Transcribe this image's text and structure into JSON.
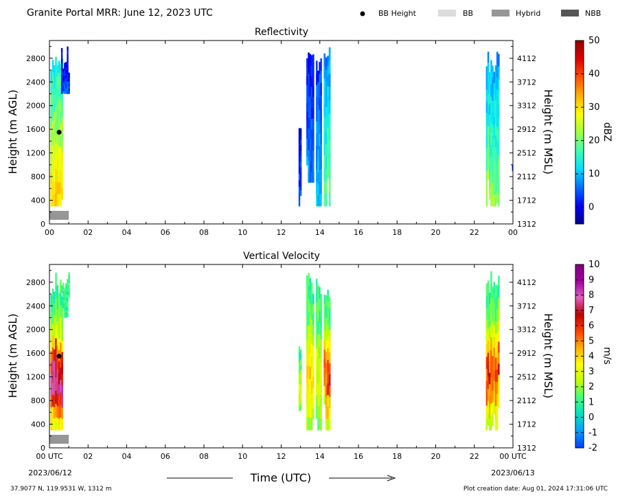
{
  "header": {
    "title": "Granite Portal MRR:  June 12, 2023 UTC",
    "legend": [
      {
        "label": "BB Height",
        "kind": "dot",
        "color": "#000000"
      },
      {
        "label": "BB",
        "kind": "box",
        "color": "#dcdcdc"
      },
      {
        "label": "Hybrid",
        "kind": "box",
        "color": "#969696"
      },
      {
        "label": "NBB",
        "kind": "box",
        "color": "#555555"
      }
    ]
  },
  "chart_data": [
    {
      "type": "heatmap",
      "title": "Reflectivity",
      "ylabel": "Height (m AGL)",
      "ylabel_right": "Height (m MSL)",
      "colorbar_label": "dBZ",
      "xlim": [
        0,
        24
      ],
      "ylim": [
        0,
        3100
      ],
      "yticks": [
        "0",
        "400",
        "800",
        "1200",
        "1600",
        "2000",
        "2400",
        "2800"
      ],
      "yticks_right": [
        "1312",
        "1712",
        "2112",
        "2512",
        "2912",
        "3312",
        "3712",
        "4112"
      ],
      "xticks": [
        "00",
        "02",
        "04",
        "06",
        "08",
        "10",
        "12",
        "14",
        "16",
        "18",
        "20",
        "22",
        "00"
      ],
      "colorbar_range": [
        -5,
        50
      ],
      "colorbar_ticks": [
        "0",
        "10",
        "20",
        "30",
        "40",
        "50"
      ],
      "colormap": [
        "#00008b",
        "#0000ff",
        "#0070ff",
        "#00e0ff",
        "#40ffb0",
        "#a0ff40",
        "#ffff00",
        "#ffb000",
        "#ff5000",
        "#e00000",
        "#900000"
      ],
      "bb_height": [
        {
          "x": 0.5,
          "y": 1550
        }
      ],
      "bb_type": [
        {
          "x0": 0.0,
          "x1": 1.0,
          "type": "Hybrid"
        }
      ],
      "echo_columns": [
        {
          "x0": 0.05,
          "x1": 0.7,
          "ybot": 300,
          "ytop": 3000,
          "peak": 32
        },
        {
          "x0": 0.6,
          "x1": 1.05,
          "ybot": 2200,
          "ytop": 3000,
          "peak": 5
        },
        {
          "x0": 12.9,
          "x1": 13.05,
          "ybot": 300,
          "ytop": 2000,
          "peak": 5
        },
        {
          "x0": 13.3,
          "x1": 13.7,
          "ybot": 700,
          "ytop": 3000,
          "peak": 8
        },
        {
          "x0": 13.8,
          "x1": 14.1,
          "ybot": 300,
          "ytop": 3000,
          "peak": 12
        },
        {
          "x0": 14.2,
          "x1": 14.55,
          "ybot": 300,
          "ytop": 3000,
          "peak": 20
        },
        {
          "x0": 22.6,
          "x1": 23.3,
          "ybot": 300,
          "ytop": 3000,
          "peak": 22
        },
        {
          "x0": 23.95,
          "x1": 24.0,
          "ybot": 600,
          "ytop": 1000,
          "peak": 5
        }
      ]
    },
    {
      "type": "heatmap",
      "title": "Vertical Velocity",
      "ylabel": "Height (m AGL)",
      "ylabel_right": "Height (m MSL)",
      "colorbar_label": "m/s",
      "xlim": [
        0,
        24
      ],
      "ylim": [
        0,
        3100
      ],
      "yticks": [
        "0",
        "400",
        "800",
        "1200",
        "1600",
        "2000",
        "2400",
        "2800"
      ],
      "yticks_right": [
        "1312",
        "1712",
        "2112",
        "2512",
        "2912",
        "3312",
        "3712",
        "4112"
      ],
      "xticks": [
        "00 UTC",
        "02",
        "04",
        "06",
        "08",
        "10",
        "12",
        "14",
        "16",
        "18",
        "20",
        "22",
        "00 UTC"
      ],
      "colorbar_range": [
        -2,
        10
      ],
      "colorbar_ticks": [
        "-2",
        "-1",
        "0",
        "1",
        "2",
        "3",
        "4",
        "5",
        "6",
        "7",
        "8",
        "9",
        "10"
      ],
      "colormap": [
        "#0040ff",
        "#00a0ff",
        "#00e0c0",
        "#40ff80",
        "#c0ff00",
        "#ffff00",
        "#ffb000",
        "#ff4000",
        "#c00000",
        "#e060c0",
        "#a000a0",
        "#800080"
      ],
      "bb_height": [
        {
          "x": 0.5,
          "y": 1550
        }
      ],
      "bb_type": [
        {
          "x0": 0.0,
          "x1": 1.0,
          "type": "Hybrid"
        }
      ],
      "echo_columns": [
        {
          "x0": 0.05,
          "x1": 0.7,
          "ybot": 300,
          "ytop": 3000,
          "peak": 8
        },
        {
          "x0": 0.6,
          "x1": 1.05,
          "ybot": 2200,
          "ytop": 3000,
          "peak": 1
        },
        {
          "x0": 12.9,
          "x1": 13.05,
          "ybot": 300,
          "ytop": 2000,
          "peak": 3
        },
        {
          "x0": 13.3,
          "x1": 13.7,
          "ybot": 300,
          "ytop": 3000,
          "peak": 4
        },
        {
          "x0": 13.8,
          "x1": 14.1,
          "ybot": 300,
          "ytop": 3000,
          "peak": 3
        },
        {
          "x0": 14.2,
          "x1": 14.55,
          "ybot": 300,
          "ytop": 3000,
          "peak": 6
        },
        {
          "x0": 22.6,
          "x1": 23.3,
          "ybot": 300,
          "ytop": 3000,
          "peak": 6
        },
        {
          "x0": 23.95,
          "x1": 24.0,
          "ybot": 600,
          "ytop": 1000,
          "peak": 3
        }
      ]
    }
  ],
  "footer": {
    "date_start": "2023/06/12",
    "date_end": "2023/06/13",
    "xlabel": "Time (UTC)",
    "location": "37.9077 N, 119.9531 W, 1312 m",
    "creation": "Plot creation date: Aug 01, 2024 17:31:06 UTC"
  }
}
